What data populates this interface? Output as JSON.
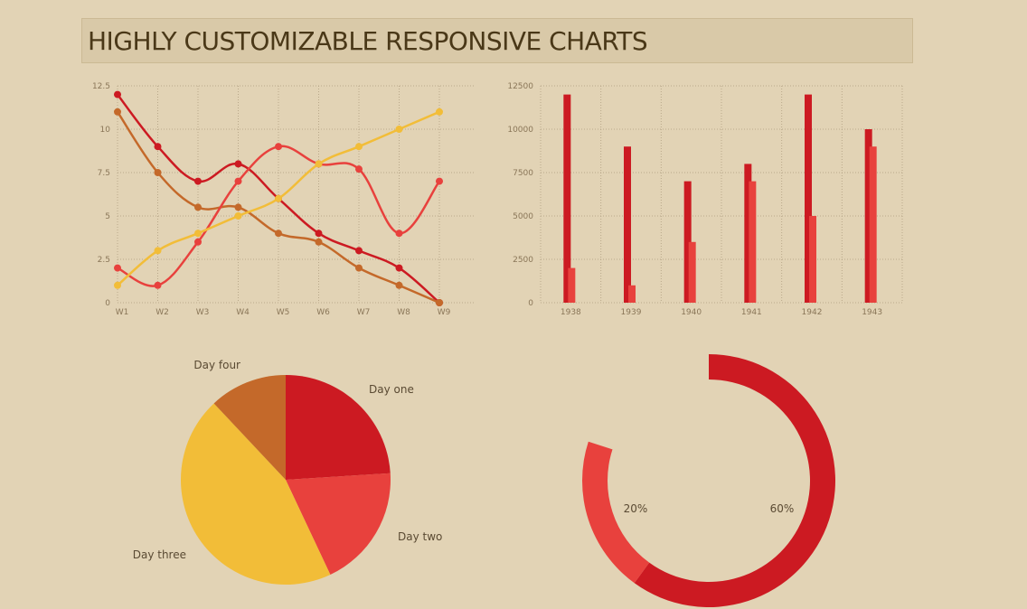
{
  "header": {
    "title": "HIGHLY CUSTOMIZABLE RESPONSIVE CHARTS"
  },
  "colors": {
    "red": "#cc1a22",
    "light_red": "#e8413d",
    "orange": "#c4692a",
    "yellow": "#f2bd38"
  },
  "chart_data": [
    {
      "type": "line",
      "title": "",
      "x": [
        "W1",
        "W2",
        "W3",
        "W4",
        "W5",
        "W6",
        "W7",
        "W8",
        "W9"
      ],
      "yticks": [
        "0",
        "2.5",
        "5",
        "7.5",
        "10",
        "12.5"
      ],
      "ylim": [
        0,
        12.5
      ],
      "grid": true,
      "series": [
        {
          "color": "#cc1a22",
          "values": [
            12,
            9,
            7,
            8,
            6,
            4,
            3,
            2,
            0
          ]
        },
        {
          "color": "#c4692a",
          "values": [
            11,
            7.5,
            5.5,
            5.5,
            4,
            3.5,
            2,
            1,
            0
          ]
        },
        {
          "color": "#e8413d",
          "values": [
            2,
            1,
            3.5,
            7,
            9,
            8,
            7.7,
            4,
            7
          ]
        },
        {
          "color": "#f2bd38",
          "values": [
            1,
            3,
            4,
            5,
            6,
            8,
            9,
            10,
            11
          ]
        }
      ]
    },
    {
      "type": "bar",
      "title": "",
      "categories": [
        "1938",
        "1939",
        "1940",
        "1941",
        "1942",
        "1943"
      ],
      "yticks": [
        "0",
        "2500",
        "5000",
        "7500",
        "10000",
        "12500"
      ],
      "ylim": [
        0,
        12500
      ],
      "grid": true,
      "series": [
        {
          "color": "#cc1a22",
          "values": [
            12000,
            9000,
            7000,
            8000,
            12000,
            10000
          ]
        },
        {
          "color": "#e8413d",
          "values": [
            2000,
            1000,
            3500,
            7000,
            5000,
            9000
          ]
        }
      ]
    },
    {
      "type": "pie",
      "title": "",
      "labels": [
        "Day one",
        "Day two",
        "Day three",
        "Day four"
      ],
      "values": [
        24,
        19,
        45,
        12
      ],
      "colors": [
        "#cc1a22",
        "#e8413d",
        "#f2bd38",
        "#c4692a"
      ]
    },
    {
      "type": "pie",
      "subtype": "donut",
      "title": "",
      "labels": [
        "60%",
        "20%"
      ],
      "values": [
        60,
        20
      ],
      "colors": [
        "#cc1a22",
        "#e8413d"
      ]
    }
  ]
}
